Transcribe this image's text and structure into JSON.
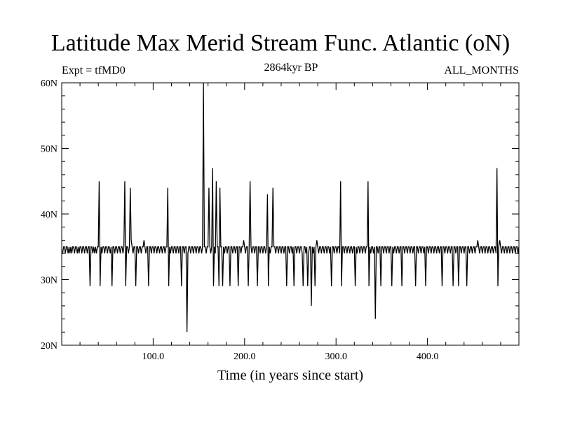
{
  "header": {
    "title": "Latitude Max Merid Stream Func. Atlantic (oN)",
    "left_label": "Expt = tfMD0",
    "center_label": "2864kyr BP",
    "right_label": "ALL_MONTHS"
  },
  "colors": {
    "line": "#000000",
    "axis": "#000000",
    "background": "#ffffff"
  },
  "chart_data": {
    "type": "line",
    "title": "Latitude Max Merid Stream Func. Atlantic (oN)",
    "xlabel": "Time (in years since start)",
    "ylabel": "",
    "xlim": [
      0,
      500
    ],
    "ylim": [
      20,
      60
    ],
    "x_ticks": [
      100,
      200,
      300,
      400
    ],
    "x_tick_labels": [
      "100.0",
      "200.0",
      "300.0",
      "400.0"
    ],
    "y_ticks": [
      20,
      30,
      40,
      50,
      60
    ],
    "y_tick_labels": [
      "20N",
      "30N",
      "40N",
      "50N",
      "60N"
    ],
    "grid": false,
    "series": [
      {
        "values": [
          34,
          35,
          35,
          34,
          35,
          35,
          34,
          35,
          34,
          35,
          34,
          35,
          35,
          34,
          35,
          35,
          34,
          35,
          34,
          35,
          35,
          34,
          35,
          35,
          34,
          35,
          35,
          34,
          35,
          35,
          29,
          35,
          35,
          34,
          35,
          34,
          35,
          34,
          35,
          35,
          45,
          29,
          35,
          34,
          35,
          35,
          34,
          35,
          35,
          34,
          35,
          35,
          34,
          35,
          29,
          35,
          35,
          34,
          35,
          35,
          34,
          35,
          35,
          34,
          35,
          35,
          34,
          35,
          45,
          29,
          35,
          35,
          34,
          35,
          44,
          36,
          35,
          34,
          35,
          35,
          29,
          35,
          35,
          34,
          35,
          35,
          34,
          35,
          35,
          36,
          35,
          34,
          35,
          35,
          29,
          35,
          35,
          34,
          35,
          35,
          34,
          35,
          35,
          34,
          35,
          35,
          34,
          35,
          35,
          34,
          35,
          35,
          34,
          35,
          35,
          44,
          29,
          35,
          34,
          35,
          35,
          34,
          35,
          35,
          34,
          35,
          35,
          34,
          35,
          35,
          29,
          35,
          35,
          34,
          35,
          35,
          22,
          34,
          35,
          35,
          34,
          35,
          35,
          34,
          35,
          35,
          34,
          35,
          35,
          34,
          35,
          35,
          34,
          35,
          60,
          35,
          35,
          34,
          35,
          35,
          44,
          35,
          34,
          35,
          47,
          29,
          35,
          34,
          45,
          35,
          35,
          29,
          44,
          35,
          35,
          29,
          35,
          34,
          35,
          35,
          34,
          35,
          35,
          29,
          35,
          35,
          34,
          35,
          35,
          34,
          35,
          35,
          29,
          35,
          35,
          34,
          35,
          35,
          36,
          35,
          34,
          35,
          35,
          29,
          35,
          45,
          35,
          34,
          35,
          35,
          34,
          35,
          35,
          29,
          35,
          35,
          34,
          35,
          35,
          34,
          35,
          35,
          34,
          35,
          43,
          29,
          35,
          34,
          35,
          35,
          44,
          35,
          35,
          34,
          35,
          35,
          34,
          35,
          35,
          34,
          35,
          35,
          34,
          35,
          35,
          29,
          35,
          35,
          34,
          35,
          35,
          34,
          35,
          29,
          35,
          35,
          34,
          35,
          35,
          34,
          35,
          35,
          34,
          29,
          35,
          35,
          34,
          35,
          29,
          34,
          35,
          35,
          26,
          35,
          34,
          35,
          29,
          35,
          36,
          35,
          34,
          35,
          35,
          34,
          35,
          35,
          34,
          35,
          35,
          34,
          35,
          35,
          34,
          35,
          29,
          35,
          35,
          34,
          35,
          35,
          34,
          35,
          35,
          34,
          45,
          29,
          35,
          35,
          34,
          35,
          35,
          34,
          35,
          35,
          34,
          35,
          35,
          34,
          35,
          35,
          29,
          35,
          34,
          35,
          35,
          34,
          35,
          35,
          34,
          35,
          35,
          34,
          35,
          35,
          45,
          29,
          35,
          34,
          35,
          35,
          34,
          35,
          24,
          35,
          35,
          34,
          35,
          35,
          29,
          35,
          35,
          34,
          35,
          35,
          34,
          35,
          35,
          34,
          35,
          35,
          29,
          35,
          34,
          35,
          35,
          34,
          35,
          35,
          34,
          35,
          35,
          29,
          35,
          35,
          34,
          35,
          35,
          34,
          35,
          35,
          34,
          35,
          35,
          34,
          35,
          35,
          29,
          35,
          35,
          34,
          35,
          35,
          34,
          35,
          35,
          34,
          35,
          29,
          35,
          35,
          34,
          35,
          35,
          34,
          35,
          35,
          34,
          35,
          35,
          34,
          35,
          35,
          34,
          35,
          35,
          29,
          35,
          35,
          34,
          35,
          35,
          34,
          35,
          35,
          34,
          35,
          35,
          29,
          35,
          35,
          34,
          35,
          35,
          29,
          35,
          35,
          34,
          35,
          35,
          34,
          35,
          35,
          29,
          35,
          35,
          34,
          35,
          35,
          34,
          35,
          35,
          34,
          35,
          35,
          36,
          35,
          34,
          35,
          35,
          34,
          35,
          35,
          34,
          35,
          35,
          34,
          35,
          35,
          34,
          35,
          35,
          34,
          35,
          35,
          34,
          47,
          29,
          35,
          36,
          35,
          34,
          35,
          35,
          34,
          35,
          35,
          34,
          35,
          35,
          34,
          35,
          35,
          34,
          35,
          35,
          34,
          35,
          35,
          34,
          35
        ]
      }
    ]
  }
}
